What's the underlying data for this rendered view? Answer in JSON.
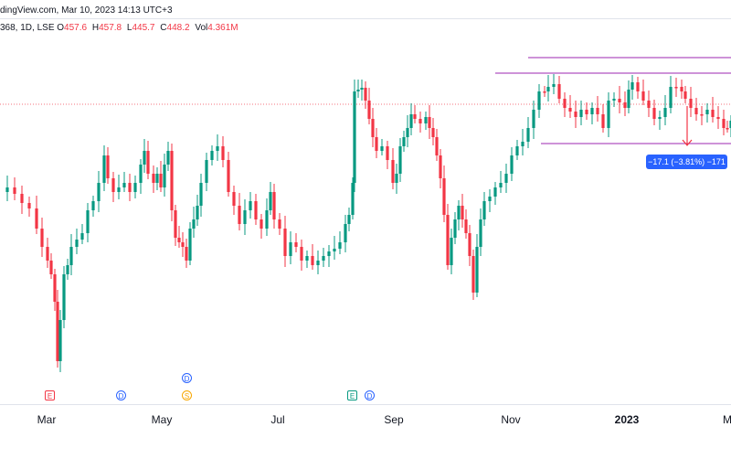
{
  "header": {
    "source_line": "dingView.com, Mar 10, 2023 14:13 UTC+3",
    "symbol_fragment": "368, 1D, LSE",
    "ohlc": [
      {
        "label": "O",
        "value": "457.6"
      },
      {
        "label": "H",
        "value": "457.8"
      },
      {
        "label": "L",
        "value": "445.7"
      },
      {
        "label": "C",
        "value": "448.2"
      },
      {
        "label": "Vol",
        "value": "4.361M"
      }
    ]
  },
  "colors": {
    "up": "#089981",
    "down": "#f23645",
    "range_line": "#9c27b0",
    "measure": "#2962ff",
    "last_price_line": "#f23645"
  },
  "measure_label": "−17.1 (−3.81%) −171",
  "time_axis": {
    "labels": [
      {
        "text": "Mar",
        "bold": false
      },
      {
        "text": "May",
        "bold": false
      },
      {
        "text": "Jul",
        "bold": false
      },
      {
        "text": "Sep",
        "bold": false
      },
      {
        "text": "Nov",
        "bold": false
      },
      {
        "text": "2023",
        "bold": true
      },
      {
        "text": "M",
        "bold": false
      }
    ]
  },
  "events": [
    {
      "type": "earnings",
      "symbol": "E",
      "near": "Mar"
    },
    {
      "type": "dividend",
      "symbol": "D",
      "near": "Apr"
    },
    {
      "type": "dividend",
      "symbol": "D",
      "near": "May"
    },
    {
      "type": "split",
      "symbol": "S",
      "near": "May"
    },
    {
      "type": "earnings",
      "symbol": "E",
      "near": "Aug"
    },
    {
      "type": "dividend",
      "symbol": "D",
      "near": "Aug"
    }
  ],
  "chart_data": {
    "type": "candlestick",
    "interval": "1D",
    "y_axis_labels_visible": false,
    "grid": false,
    "candles": []
  }
}
